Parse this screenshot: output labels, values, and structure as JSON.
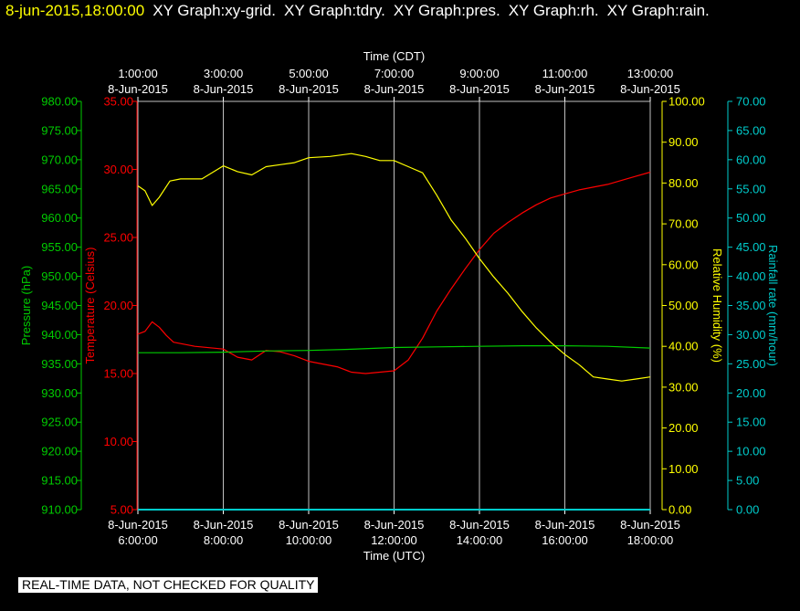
{
  "header": {
    "datetime": "8-jun-2015,18:00:00",
    "graphs": [
      "XY Graph:xy-grid.",
      "XY Graph:tdry.",
      "XY Graph:pres.",
      "XY Graph:rh.",
      "XY Graph:rain."
    ]
  },
  "disclaimer": "REAL-TIME DATA, NOT CHECKED FOR QUALITY",
  "colors": {
    "background": "#000000",
    "grid": "#c0c0c0",
    "temperature": "#ff0000",
    "pressure": "#00cc00",
    "humidity": "#ffff00",
    "rainfall": "#00cccc",
    "axis_text": "#ffffff"
  },
  "chart_data": {
    "type": "line",
    "grid": true,
    "x_bottom": {
      "label": "Time (UTC)",
      "range": [
        "2015-06-08 06:00",
        "2015-06-08 18:00"
      ],
      "ticks": [
        {
          "date": "8-Jun-2015",
          "time": "6:00:00"
        },
        {
          "date": "8-Jun-2015",
          "time": "8:00:00"
        },
        {
          "date": "8-Jun-2015",
          "time": "10:00:00"
        },
        {
          "date": "8-Jun-2015",
          "time": "12:00:00"
        },
        {
          "date": "8-Jun-2015",
          "time": "14:00:00"
        },
        {
          "date": "8-Jun-2015",
          "time": "16:00:00"
        },
        {
          "date": "8-Jun-2015",
          "time": "18:00:00"
        }
      ]
    },
    "x_top": {
      "label": "Time (CDT)",
      "ticks": [
        {
          "time": "1:00:00",
          "date": "8-Jun-2015"
        },
        {
          "time": "3:00:00",
          "date": "8-Jun-2015"
        },
        {
          "time": "5:00:00",
          "date": "8-Jun-2015"
        },
        {
          "time": "7:00:00",
          "date": "8-Jun-2015"
        },
        {
          "time": "9:00:00",
          "date": "8-Jun-2015"
        },
        {
          "time": "11:00:00",
          "date": "8-Jun-2015"
        },
        {
          "time": "13:00:00",
          "date": "8-Jun-2015"
        }
      ]
    },
    "y_axes": {
      "pressure": {
        "label": "Pressure (hPa)",
        "range": [
          910,
          980
        ],
        "ticks": [
          "910.00",
          "915.00",
          "920.00",
          "925.00",
          "930.00",
          "935.00",
          "940.00",
          "945.00",
          "950.00",
          "955.00",
          "960.00",
          "965.00",
          "970.00",
          "975.00",
          "980.00"
        ]
      },
      "temperature": {
        "label": "Temperature (Celsius)",
        "range": [
          5,
          35
        ],
        "ticks": [
          "5.00",
          "10.00",
          "15.00",
          "20.00",
          "25.00",
          "30.00",
          "35.00"
        ]
      },
      "humidity": {
        "label": "Relative Humidity (%)",
        "range": [
          0,
          100
        ],
        "ticks": [
          "0.00",
          "10.00",
          "20.00",
          "30.00",
          "40.00",
          "50.00",
          "60.00",
          "70.00",
          "80.00",
          "90.00",
          "100.00"
        ]
      },
      "rainfall": {
        "label": "Rainfall rate (mm/hour)",
        "range": [
          0,
          70
        ],
        "ticks": [
          "0.00",
          "5.00",
          "10.00",
          "15.00",
          "20.00",
          "25.00",
          "30.00",
          "35.00",
          "40.00",
          "45.00",
          "50.00",
          "55.00",
          "60.00",
          "65.00",
          "70.00"
        ]
      }
    },
    "series": [
      {
        "key": "temperature",
        "axis": "temperature",
        "x": [
          "2015-06-08 06:00",
          "2015-06-08 06:10",
          "2015-06-08 06:20",
          "2015-06-08 06:30",
          "2015-06-08 06:40",
          "2015-06-08 06:50",
          "2015-06-08 07:00",
          "2015-06-08 07:20",
          "2015-06-08 07:40",
          "2015-06-08 08:00",
          "2015-06-08 08:20",
          "2015-06-08 08:40",
          "2015-06-08 09:00",
          "2015-06-08 09:20",
          "2015-06-08 09:40",
          "2015-06-08 10:00",
          "2015-06-08 10:20",
          "2015-06-08 10:40",
          "2015-06-08 11:00",
          "2015-06-08 11:20",
          "2015-06-08 11:40",
          "2015-06-08 12:00",
          "2015-06-08 12:20",
          "2015-06-08 12:40",
          "2015-06-08 13:00",
          "2015-06-08 13:20",
          "2015-06-08 13:40",
          "2015-06-08 14:00",
          "2015-06-08 14:20",
          "2015-06-08 14:40",
          "2015-06-08 15:00",
          "2015-06-08 15:20",
          "2015-06-08 15:40",
          "2015-06-08 16:00",
          "2015-06-08 16:20",
          "2015-06-08 16:40",
          "2015-06-08 17:00",
          "2015-06-08 17:20",
          "2015-06-08 17:40",
          "2015-06-08 18:00"
        ],
        "y": [
          17.9,
          18.1,
          18.8,
          18.4,
          17.8,
          17.3,
          17.2,
          17.0,
          16.9,
          16.8,
          16.2,
          16.0,
          16.7,
          16.6,
          16.3,
          15.9,
          15.7,
          15.5,
          15.1,
          15.0,
          15.1,
          15.2,
          16.0,
          17.6,
          19.6,
          21.2,
          22.7,
          24.1,
          25.3,
          26.1,
          26.8,
          27.4,
          27.9,
          28.2,
          28.5,
          28.7,
          28.9,
          29.2,
          29.5,
          29.8
        ]
      },
      {
        "key": "pressure",
        "axis": "pressure",
        "x": [
          "2015-06-08 06:00",
          "2015-06-08 07:00",
          "2015-06-08 08:00",
          "2015-06-08 09:00",
          "2015-06-08 10:00",
          "2015-06-08 11:00",
          "2015-06-08 12:00",
          "2015-06-08 13:00",
          "2015-06-08 14:00",
          "2015-06-08 15:00",
          "2015-06-08 16:00",
          "2015-06-08 17:00",
          "2015-06-08 18:00"
        ],
        "y": [
          936.9,
          936.9,
          937.0,
          937.2,
          937.3,
          937.5,
          937.8,
          937.9,
          938.0,
          938.1,
          938.1,
          938.0,
          937.7
        ]
      },
      {
        "key": "humidity",
        "axis": "humidity",
        "x": [
          "2015-06-08 06:00",
          "2015-06-08 06:10",
          "2015-06-08 06:20",
          "2015-06-08 06:30",
          "2015-06-08 06:45",
          "2015-06-08 07:00",
          "2015-06-08 07:30",
          "2015-06-08 08:00",
          "2015-06-08 08:20",
          "2015-06-08 08:40",
          "2015-06-08 09:00",
          "2015-06-08 09:20",
          "2015-06-08 09:40",
          "2015-06-08 10:00",
          "2015-06-08 10:30",
          "2015-06-08 11:00",
          "2015-06-08 11:20",
          "2015-06-08 11:40",
          "2015-06-08 12:00",
          "2015-06-08 12:20",
          "2015-06-08 12:40",
          "2015-06-08 13:00",
          "2015-06-08 13:20",
          "2015-06-08 13:40",
          "2015-06-08 14:00",
          "2015-06-08 14:20",
          "2015-06-08 14:40",
          "2015-06-08 15:00",
          "2015-06-08 15:20",
          "2015-06-08 15:40",
          "2015-06-08 16:00",
          "2015-06-08 16:20",
          "2015-06-08 16:40",
          "2015-06-08 17:00",
          "2015-06-08 17:20",
          "2015-06-08 17:40",
          "2015-06-08 18:00"
        ],
        "y": [
          79.3,
          78.1,
          74.5,
          76.5,
          80.5,
          81.0,
          81.0,
          84.2,
          82.8,
          82.0,
          84.0,
          84.5,
          85.0,
          86.2,
          86.5,
          87.2,
          86.5,
          85.5,
          85.5,
          84.0,
          82.5,
          77.0,
          71.0,
          66.5,
          61.5,
          57.0,
          53.0,
          48.5,
          44.5,
          41.0,
          38.0,
          35.5,
          32.5,
          32.0,
          31.5,
          32.0,
          32.5
        ]
      },
      {
        "key": "rainfall",
        "axis": "rainfall",
        "x": [
          "2015-06-08 06:00",
          "2015-06-08 18:00"
        ],
        "y": [
          0.0,
          0.0
        ]
      }
    ]
  }
}
